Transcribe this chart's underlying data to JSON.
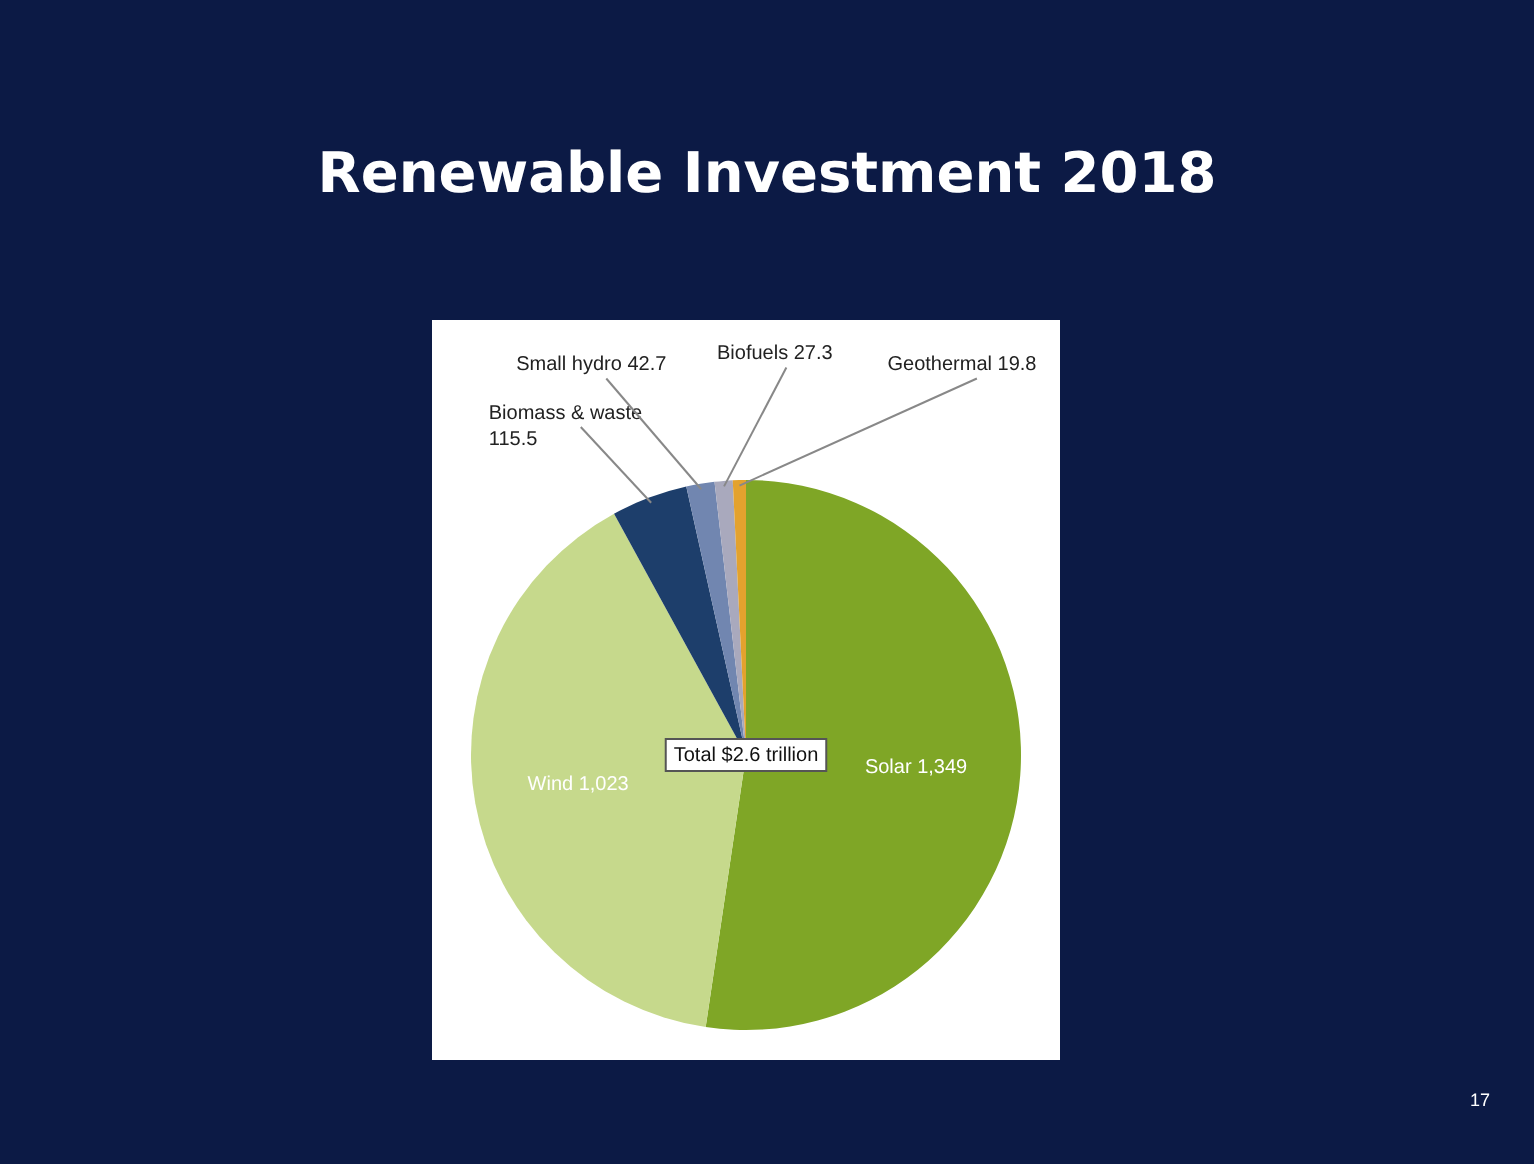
{
  "chart_data": {
    "type": "pie",
    "title": "Renewable Investment 2018",
    "categories": [
      "Solar",
      "Wind",
      "Biomass & waste",
      "Small hydro",
      "Biofuels",
      "Geothermal"
    ],
    "values": [
      1349,
      1023,
      115.5,
      42.7,
      27.3,
      19.8
    ],
    "value_labels": [
      "1,349",
      "1,023",
      "115.5",
      "42.7",
      "27.3",
      "19.8"
    ],
    "colors": [
      "#7fa626",
      "#c6d98c",
      "#1d3e6b",
      "#7186b0",
      "#a9a9bd",
      "#e3a22e"
    ],
    "legend": false,
    "annotations": [
      "Total $2.6 trillion",
      "17"
    ]
  }
}
